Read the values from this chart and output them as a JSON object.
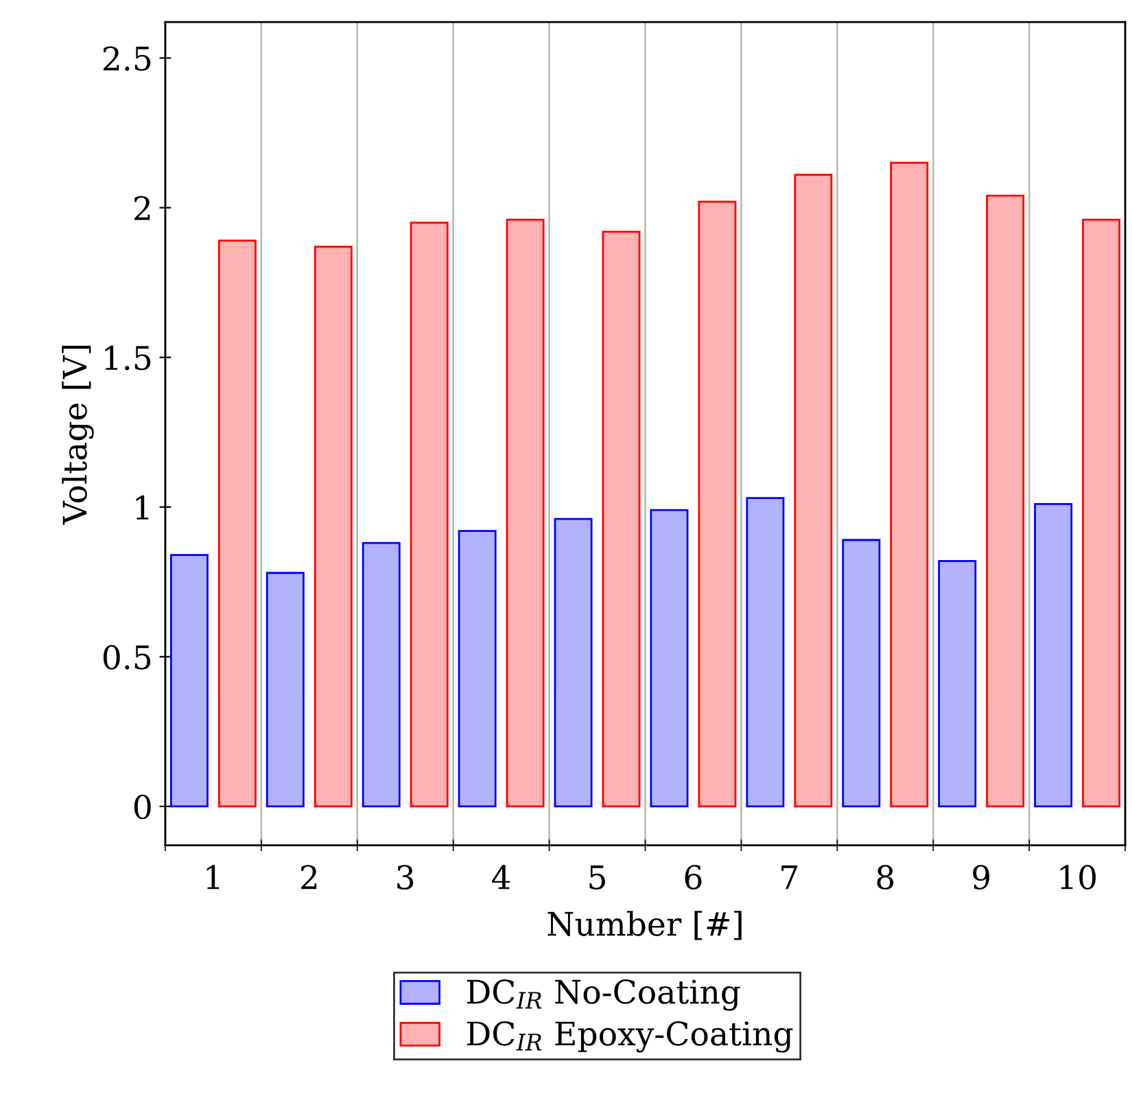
{
  "chart_data": {
    "type": "bar",
    "xlabel": "Number [#]",
    "ylabel": "Voltage [V]",
    "categories": [
      "1",
      "2",
      "3",
      "4",
      "5",
      "6",
      "7",
      "8",
      "9",
      "10"
    ],
    "series": [
      {
        "name": "DC$_{IR}$ No-Coating",
        "color": "#0000ff",
        "values": [
          0.84,
          0.78,
          0.88,
          0.92,
          0.96,
          0.99,
          1.03,
          0.89,
          0.82,
          1.01
        ]
      },
      {
        "name": "DC$_{IR}$ Epoxy-Coating",
        "color": "#ff0000",
        "values": [
          1.89,
          1.87,
          1.95,
          1.96,
          1.92,
          2.02,
          2.11,
          2.15,
          2.04,
          1.96
        ]
      }
    ],
    "ylim": [
      -0.13,
      2.62
    ],
    "yticks": [
      0,
      0.5,
      1,
      1.5,
      2,
      2.5
    ],
    "grid": "x",
    "legend": "bottom"
  }
}
